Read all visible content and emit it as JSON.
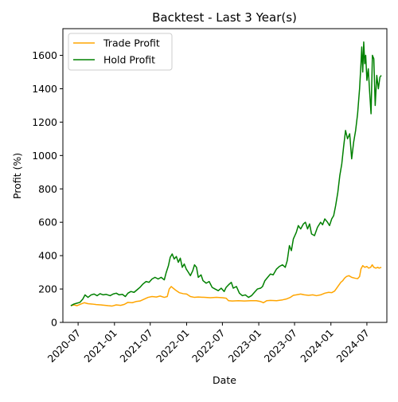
{
  "chart_data": {
    "type": "line",
    "title": "Backtest - Last 3 Year(s)",
    "xlabel": "Date",
    "ylabel": "Profit (%)",
    "x_axis_type": "date",
    "xlim": [
      "2020-04-15",
      "2024-10-10"
    ],
    "ylim": [
      0,
      1760
    ],
    "x_ticks": [
      "2020-07",
      "2021-01",
      "2021-07",
      "2022-01",
      "2022-07",
      "2023-01",
      "2023-07",
      "2024-01",
      "2024-07"
    ],
    "y_ticks": [
      0,
      200,
      400,
      600,
      800,
      1000,
      1200,
      1400,
      1600
    ],
    "grid": false,
    "legend": {
      "position": "top-left"
    },
    "series": [
      {
        "name": "Trade Profit",
        "color": "#ffa500",
        "points": [
          [
            "2020-05-25",
            100
          ],
          [
            "2020-06-10",
            105
          ],
          [
            "2020-06-25",
            100
          ],
          [
            "2020-07-15",
            110
          ],
          [
            "2020-08-01",
            118
          ],
          [
            "2020-08-20",
            112
          ],
          [
            "2020-09-10",
            110
          ],
          [
            "2020-10-01",
            107
          ],
          [
            "2020-11-01",
            104
          ],
          [
            "2020-12-01",
            100
          ],
          [
            "2020-12-20",
            98
          ],
          [
            "2021-01-10",
            105
          ],
          [
            "2021-02-01",
            102
          ],
          [
            "2021-02-20",
            108
          ],
          [
            "2021-03-10",
            120
          ],
          [
            "2021-04-01",
            118
          ],
          [
            "2021-04-20",
            125
          ],
          [
            "2021-05-10",
            128
          ],
          [
            "2021-06-01",
            140
          ],
          [
            "2021-06-20",
            150
          ],
          [
            "2021-07-10",
            155
          ],
          [
            "2021-08-01",
            152
          ],
          [
            "2021-08-20",
            158
          ],
          [
            "2021-09-10",
            150
          ],
          [
            "2021-09-25",
            155
          ],
          [
            "2021-10-05",
            200
          ],
          [
            "2021-10-15",
            215
          ],
          [
            "2021-10-25",
            205
          ],
          [
            "2021-11-10",
            190
          ],
          [
            "2021-11-25",
            178
          ],
          [
            "2021-12-15",
            172
          ],
          [
            "2022-01-01",
            170
          ],
          [
            "2022-01-20",
            155
          ],
          [
            "2022-02-10",
            150
          ],
          [
            "2022-03-01",
            152
          ],
          [
            "2022-04-01",
            150
          ],
          [
            "2022-05-01",
            148
          ],
          [
            "2022-06-01",
            150
          ],
          [
            "2022-07-01",
            148
          ],
          [
            "2022-07-20",
            145
          ],
          [
            "2022-08-01",
            130
          ],
          [
            "2022-08-20",
            128
          ],
          [
            "2022-09-20",
            130
          ],
          [
            "2022-10-20",
            128
          ],
          [
            "2022-11-20",
            130
          ],
          [
            "2022-12-20",
            130
          ],
          [
            "2023-01-10",
            125
          ],
          [
            "2023-01-25",
            118
          ],
          [
            "2023-02-10",
            130
          ],
          [
            "2023-03-01",
            132
          ],
          [
            "2023-04-01",
            130
          ],
          [
            "2023-05-01",
            135
          ],
          [
            "2023-05-20",
            140
          ],
          [
            "2023-06-10",
            150
          ],
          [
            "2023-06-25",
            162
          ],
          [
            "2023-07-10",
            165
          ],
          [
            "2023-08-01",
            170
          ],
          [
            "2023-08-20",
            165
          ],
          [
            "2023-09-10",
            162
          ],
          [
            "2023-10-01",
            165
          ],
          [
            "2023-10-20",
            160
          ],
          [
            "2023-11-10",
            165
          ],
          [
            "2023-12-01",
            175
          ],
          [
            "2023-12-20",
            180
          ],
          [
            "2024-01-05",
            178
          ],
          [
            "2024-01-20",
            188
          ],
          [
            "2024-02-05",
            215
          ],
          [
            "2024-02-20",
            240
          ],
          [
            "2024-03-01",
            250
          ],
          [
            "2024-03-10",
            265
          ],
          [
            "2024-03-20",
            275
          ],
          [
            "2024-04-01",
            280
          ],
          [
            "2024-04-15",
            270
          ],
          [
            "2024-05-01",
            265
          ],
          [
            "2024-05-15",
            262
          ],
          [
            "2024-05-25",
            275
          ],
          [
            "2024-06-01",
            320
          ],
          [
            "2024-06-10",
            340
          ],
          [
            "2024-06-20",
            330
          ],
          [
            "2024-07-01",
            335
          ],
          [
            "2024-07-10",
            325
          ],
          [
            "2024-07-20",
            330
          ],
          [
            "2024-07-28",
            345
          ],
          [
            "2024-08-05",
            330
          ],
          [
            "2024-08-15",
            325
          ],
          [
            "2024-08-25",
            330
          ],
          [
            "2024-09-01",
            325
          ],
          [
            "2024-09-12",
            330
          ]
        ]
      },
      {
        "name": "Hold Profit",
        "color": "#008000",
        "points": [
          [
            "2020-05-25",
            100
          ],
          [
            "2020-06-10",
            110
          ],
          [
            "2020-06-25",
            115
          ],
          [
            "2020-07-10",
            120
          ],
          [
            "2020-07-25",
            140
          ],
          [
            "2020-08-05",
            165
          ],
          [
            "2020-08-20",
            150
          ],
          [
            "2020-09-05",
            165
          ],
          [
            "2020-09-20",
            170
          ],
          [
            "2020-10-05",
            160
          ],
          [
            "2020-10-20",
            172
          ],
          [
            "2020-11-05",
            165
          ],
          [
            "2020-11-20",
            168
          ],
          [
            "2020-12-10",
            160
          ],
          [
            "2020-12-25",
            170
          ],
          [
            "2021-01-10",
            175
          ],
          [
            "2021-01-25",
            165
          ],
          [
            "2021-02-10",
            168
          ],
          [
            "2021-02-25",
            155
          ],
          [
            "2021-03-10",
            175
          ],
          [
            "2021-03-25",
            185
          ],
          [
            "2021-04-10",
            180
          ],
          [
            "2021-04-25",
            195
          ],
          [
            "2021-05-10",
            210
          ],
          [
            "2021-05-25",
            230
          ],
          [
            "2021-06-10",
            245
          ],
          [
            "2021-06-25",
            240
          ],
          [
            "2021-07-10",
            260
          ],
          [
            "2021-07-25",
            270
          ],
          [
            "2021-08-10",
            260
          ],
          [
            "2021-08-25",
            270
          ],
          [
            "2021-09-10",
            255
          ],
          [
            "2021-09-20",
            300
          ],
          [
            "2021-10-01",
            340
          ],
          [
            "2021-10-10",
            390
          ],
          [
            "2021-10-20",
            410
          ],
          [
            "2021-10-30",
            380
          ],
          [
            "2021-11-10",
            395
          ],
          [
            "2021-11-20",
            360
          ],
          [
            "2021-11-30",
            385
          ],
          [
            "2021-12-10",
            330
          ],
          [
            "2021-12-20",
            350
          ],
          [
            "2021-12-30",
            320
          ],
          [
            "2022-01-10",
            300
          ],
          [
            "2022-01-20",
            280
          ],
          [
            "2022-02-01",
            310
          ],
          [
            "2022-02-10",
            345
          ],
          [
            "2022-02-20",
            330
          ],
          [
            "2022-03-01",
            270
          ],
          [
            "2022-03-15",
            285
          ],
          [
            "2022-03-25",
            250
          ],
          [
            "2022-04-10",
            235
          ],
          [
            "2022-04-25",
            245
          ],
          [
            "2022-05-10",
            210
          ],
          [
            "2022-05-25",
            200
          ],
          [
            "2022-06-10",
            190
          ],
          [
            "2022-06-25",
            205
          ],
          [
            "2022-07-10",
            185
          ],
          [
            "2022-07-20",
            210
          ],
          [
            "2022-08-01",
            225
          ],
          [
            "2022-08-15",
            240
          ],
          [
            "2022-08-25",
            205
          ],
          [
            "2022-09-10",
            215
          ],
          [
            "2022-09-25",
            175
          ],
          [
            "2022-10-10",
            160
          ],
          [
            "2022-10-25",
            165
          ],
          [
            "2022-11-10",
            150
          ],
          [
            "2022-11-25",
            160
          ],
          [
            "2022-12-10",
            180
          ],
          [
            "2022-12-25",
            200
          ],
          [
            "2023-01-10",
            205
          ],
          [
            "2023-01-20",
            215
          ],
          [
            "2023-02-01",
            250
          ],
          [
            "2023-02-15",
            270
          ],
          [
            "2023-03-01",
            290
          ],
          [
            "2023-03-15",
            285
          ],
          [
            "2023-04-01",
            320
          ],
          [
            "2023-04-15",
            335
          ],
          [
            "2023-05-01",
            345
          ],
          [
            "2023-05-15",
            330
          ],
          [
            "2023-05-25",
            370
          ],
          [
            "2023-06-05",
            460
          ],
          [
            "2023-06-15",
            430
          ],
          [
            "2023-06-25",
            500
          ],
          [
            "2023-07-10",
            540
          ],
          [
            "2023-07-20",
            580
          ],
          [
            "2023-08-01",
            560
          ],
          [
            "2023-08-15",
            590
          ],
          [
            "2023-08-25",
            600
          ],
          [
            "2023-09-05",
            560
          ],
          [
            "2023-09-15",
            590
          ],
          [
            "2023-09-25",
            530
          ],
          [
            "2023-10-10",
            520
          ],
          [
            "2023-10-25",
            570
          ],
          [
            "2023-11-10",
            600
          ],
          [
            "2023-11-20",
            585
          ],
          [
            "2023-12-01",
            620
          ],
          [
            "2023-12-15",
            600
          ],
          [
            "2023-12-25",
            580
          ],
          [
            "2024-01-05",
            620
          ],
          [
            "2024-01-15",
            640
          ],
          [
            "2024-01-25",
            700
          ],
          [
            "2024-02-05",
            780
          ],
          [
            "2024-02-15",
            880
          ],
          [
            "2024-02-25",
            950
          ],
          [
            "2024-03-05",
            1050
          ],
          [
            "2024-03-15",
            1150
          ],
          [
            "2024-03-25",
            1100
          ],
          [
            "2024-04-05",
            1130
          ],
          [
            "2024-04-15",
            980
          ],
          [
            "2024-04-25",
            1080
          ],
          [
            "2024-05-05",
            1150
          ],
          [
            "2024-05-15",
            1250
          ],
          [
            "2024-05-25",
            1400
          ],
          [
            "2024-06-01",
            1550
          ],
          [
            "2024-06-05",
            1650
          ],
          [
            "2024-06-10",
            1500
          ],
          [
            "2024-06-15",
            1680
          ],
          [
            "2024-06-20",
            1550
          ],
          [
            "2024-06-25",
            1600
          ],
          [
            "2024-07-01",
            1450
          ],
          [
            "2024-07-08",
            1520
          ],
          [
            "2024-07-15",
            1380
          ],
          [
            "2024-07-22",
            1250
          ],
          [
            "2024-07-29",
            1600
          ],
          [
            "2024-08-05",
            1580
          ],
          [
            "2024-08-12",
            1300
          ],
          [
            "2024-08-20",
            1480
          ],
          [
            "2024-08-28",
            1400
          ],
          [
            "2024-09-05",
            1470
          ],
          [
            "2024-09-12",
            1480
          ]
        ]
      }
    ]
  }
}
